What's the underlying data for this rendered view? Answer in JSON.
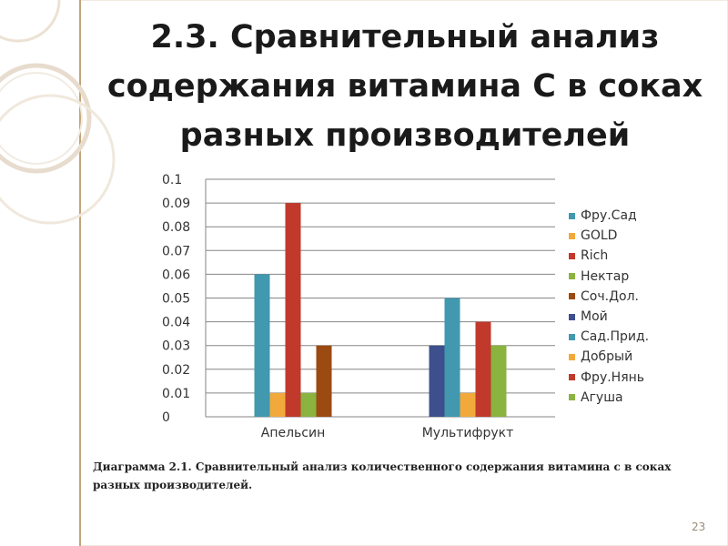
{
  "slide": {
    "title_lines": [
      "2.3. Сравнительный анализ",
      "содержания витамина С в соках",
      "разных производителей"
    ],
    "caption": "Диаграмма 2.1. Сравнительный анализ количественного содержания витамина с в соках разных производителей.",
    "page_number": "23"
  },
  "colors": {
    "frame": "#c2a47a",
    "frame_light": "#eadbc5",
    "grid": "#868686",
    "axis_text": "#333333"
  },
  "chart_data": {
    "type": "bar",
    "categories": [
      "Апельсин",
      "Мультифрукт"
    ],
    "ylim": [
      0,
      0.1
    ],
    "yticks": [
      "0",
      "0.01",
      "0.02",
      "0.03",
      "0.04",
      "0.05",
      "0.06",
      "0.07",
      "0.08",
      "0.09",
      "0.1"
    ],
    "legend_position": "right",
    "grid": true,
    "series": [
      {
        "name": "Фру.Сад",
        "color": "#4198AF",
        "values": [
          0.06,
          null
        ]
      },
      {
        "name": "GOLD",
        "color": "#F2A93B",
        "values": [
          0.01,
          null
        ]
      },
      {
        "name": "Rich",
        "color": "#C0392B",
        "values": [
          0.09,
          null
        ]
      },
      {
        "name": "Нектар",
        "color": "#8AB33F",
        "values": [
          0.01,
          null
        ]
      },
      {
        "name": "Соч.Дол.",
        "color": "#9B4A12",
        "values": [
          0.03,
          null
        ]
      },
      {
        "name": "Мой",
        "color": "#3D4F8C",
        "values": [
          null,
          0.03
        ]
      },
      {
        "name": "Сад.Прид.",
        "color": "#4198AF",
        "values": [
          null,
          0.05
        ]
      },
      {
        "name": "Добрый",
        "color": "#F2A93B",
        "values": [
          null,
          0.01
        ]
      },
      {
        "name": "Фру.Нянь",
        "color": "#C0392B",
        "values": [
          null,
          0.04
        ]
      },
      {
        "name": "Агуша",
        "color": "#8AB33F",
        "values": [
          null,
          0.03
        ]
      }
    ]
  }
}
